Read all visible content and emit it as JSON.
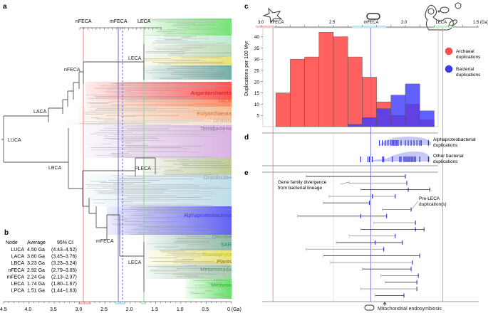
{
  "panels": {
    "a": "a",
    "b": "b",
    "c": "c",
    "d": "d",
    "e": "e"
  },
  "tree": {
    "top_axis_labels": [
      "nFECA",
      "mFECA",
      "LECA"
    ],
    "nodes": {
      "luca": "LUCA",
      "laca": "LACA",
      "lbca": "LBCA",
      "nfeca": "nFECA",
      "leca_top": "LECA",
      "pleca": "PLECA",
      "mfeca": "mFECA",
      "leca_bottom": "LECA"
    },
    "clades": [
      {
        "label": "Asgardarchaeota",
        "color": "#d2141e"
      },
      {
        "label": "TACK",
        "color": "#e8561c"
      },
      {
        "label": "Euryarchaeota",
        "color": "#c8783c"
      },
      {
        "label": "DPANN",
        "color": "#c8a888"
      },
      {
        "label": "Terrabacteria",
        "color": "#9a6aaa"
      },
      {
        "label": "Gracilicutes",
        "color": "#7d99a8"
      },
      {
        "label": "Alphaproteobacteria",
        "color": "#3a3ae8"
      },
      {
        "label": "Discoba",
        "color": "#6d8a80"
      },
      {
        "label": "SAR",
        "color": "#2a8a6a"
      },
      {
        "label": "Rhodophyta",
        "color": "#d2c800"
      },
      {
        "label": "Plants",
        "color": "#6d6a20"
      },
      {
        "label": "Metamonada",
        "color": "#6d8a80"
      },
      {
        "label": "Metazoa",
        "color": "#18c018"
      }
    ],
    "x_axis": {
      "ticks": [
        "4.5",
        "4.0",
        "3.5",
        "3.0",
        "2.5",
        "2.0",
        "1.5",
        "1.0",
        "0.5",
        "0 (Ga)"
      ]
    }
  },
  "table": {
    "headers": [
      "Node",
      "Average",
      "95% CI"
    ],
    "rows": [
      [
        "LUCA",
        "4.50 Ga",
        "(4.43–4.52)"
      ],
      [
        "LACA",
        "3.60 Ga",
        "(3.45–3.76)"
      ],
      [
        "LBCA",
        "3.23 Ga",
        "(3.23–3.24)"
      ],
      [
        "nFECA",
        "2.92 Ga",
        "(2.79–3.05)"
      ],
      [
        "mFECA",
        "2.24 Ga",
        "(2.13–2.37)"
      ],
      [
        "LECA",
        "1.74 Ga",
        "(1.80–1.67)"
      ],
      [
        "LPCA",
        "1.51 Ga",
        "(1.44–1.63)"
      ]
    ]
  },
  "chart_data": [
    {
      "type": "bar",
      "panel": "c",
      "ylabel": "Duplications per 100 Myr",
      "ylim": [
        0,
        44
      ],
      "yticks": [
        "5",
        "10",
        "15",
        "20",
        "25",
        "30",
        "35",
        "40"
      ],
      "xlim": [
        3.0,
        1.5
      ],
      "xticks": [
        "3.0",
        "2.5",
        "2.0",
        "1.5 (Ga)"
      ],
      "markers": [
        {
          "label": "nFECA",
          "age": 2.92,
          "color": "#f08080"
        },
        {
          "label": "mFECA",
          "age": 2.24,
          "color": "#7a7ae8"
        },
        {
          "label": "LECA",
          "age": 1.74,
          "color": "#80d080"
        }
      ],
      "bin_starts_ga": [
        2.9,
        2.8,
        2.7,
        2.6,
        2.5,
        2.4,
        2.3,
        2.2,
        2.1,
        2.0,
        1.9
      ],
      "bin_width_ga": 0.1,
      "series": [
        {
          "name": "Archaeal duplications",
          "color": "#ff5050",
          "values": [
            15,
            30,
            31,
            42,
            40,
            31,
            22,
            11,
            5,
            10,
            3
          ]
        },
        {
          "name": "Bacterial duplications",
          "color": "#3a3aff",
          "values": [
            0,
            0,
            0,
            0,
            0,
            1,
            4,
            8,
            14,
            19,
            7
          ]
        }
      ],
      "legend": "right"
    },
    {
      "type": "scatter",
      "panel": "d",
      "series": [
        {
          "name": "Alphaproteobacterial duplications",
          "ages": [
            2.18,
            2.16,
            2.14,
            2.12,
            2.1,
            2.09,
            2.08,
            2.07,
            2.06,
            2.05,
            2.03,
            2.0,
            1.98,
            1.96,
            1.94,
            1.92,
            1.9,
            1.89,
            1.84
          ]
        },
        {
          "name": "Other bacterial duplications",
          "ages": [
            2.31,
            2.26,
            2.25,
            2.23,
            2.16,
            2.15,
            2.09,
            2.04,
            2.03,
            2.01,
            2.0,
            1.99,
            1.98,
            1.97,
            1.96,
            1.95,
            1.94,
            1.93,
            1.9,
            1.84
          ]
        }
      ]
    },
    {
      "type": "errorbar",
      "panel": "e",
      "rows": [
        {
          "start": 2.69,
          "marks": [
            2.0
          ]
        },
        {
          "start": 2.39,
          "marks": [
            1.99
          ]
        },
        {
          "start": 2.31,
          "marks": [
            1.98,
            1.83
          ]
        },
        {
          "start": 2.53,
          "marks": [
            2.23,
            2.07
          ]
        },
        {
          "start": 2.57,
          "marks": [
            2.25
          ]
        },
        {
          "start": 2.16,
          "marks": [
            1.96
          ]
        },
        {
          "start": 2.75,
          "marks": [
            2.31,
            2.13
          ]
        },
        {
          "start": 2.22,
          "marks": [
            1.93
          ]
        },
        {
          "start": 2.31,
          "marks": [
            1.93,
            1.87
          ]
        },
        {
          "start": 2.39,
          "marks": [
            2.07
          ]
        },
        {
          "start": 2.48,
          "marks": [
            2.21,
            2.02
          ]
        },
        {
          "start": 2.69,
          "marks": [
            2.15
          ]
        },
        {
          "start": 2.57,
          "marks": [
            1.9
          ]
        },
        {
          "start": 2.52,
          "marks": [
            1.95
          ]
        },
        {
          "start": 2.3,
          "marks": [
            1.96
          ]
        },
        {
          "start": 2.17,
          "marks": [
            1.91
          ]
        },
        {
          "start": 2.14,
          "marks": [
            1.92
          ]
        },
        {
          "start": 2.31,
          "marks": [
            1.92
          ]
        },
        {
          "start": 2.21,
          "marks": [
            2.01
          ]
        }
      ]
    }
  ],
  "annotations": {
    "divergence_line1": "Gene family divergence",
    "divergence_line2": "from bacterial lineage",
    "preleca_line1": "Pre-LECA",
    "preleca_line2": "duplication(s)",
    "endosymbiosis": "Mitochondrial endosymbiosis",
    "alpha_line1": "Alphaproteobacterial",
    "alpha_line2": "duplications",
    "other_line1": "Other bacterial",
    "other_line2": "duplications",
    "legend_arch1": "Archaeal",
    "legend_arch2": "duplications",
    "legend_bact1": "Bacterial",
    "legend_bact2": "duplications",
    "c_top_labels": [
      "nFECA",
      "mFECA",
      "LECA"
    ]
  }
}
